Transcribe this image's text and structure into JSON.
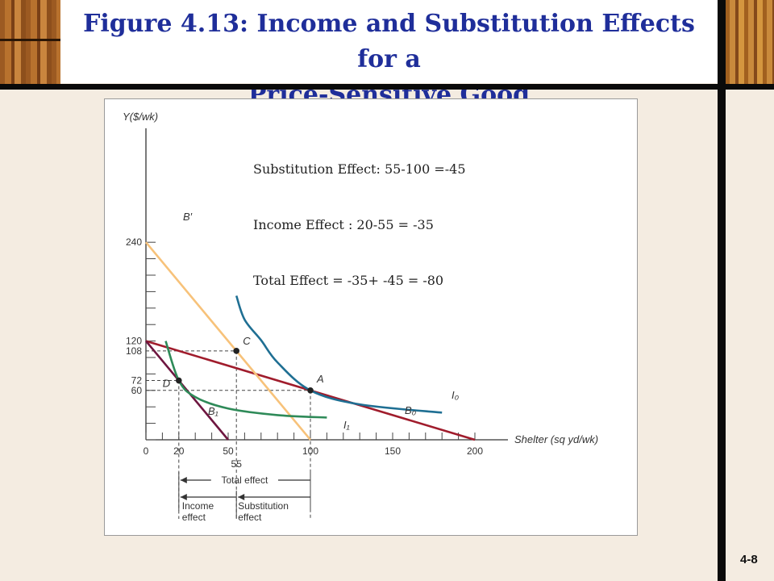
{
  "header": {
    "title_line1": "Figure 4.13: Income and Substitution Effects for a",
    "title_line2": "Price-Sensitive Good"
  },
  "slide_number": "4-8",
  "annotations": [
    "Substitution Effect: 55-100 =-45",
    "Income Effect : 20-55 = -35",
    "Total Effect = -35+ -45 = -80"
  ],
  "chart_data": {
    "type": "line",
    "xlabel": "Shelter (sq yd/wk)",
    "ylabel": "Y($/wk)",
    "xlim": [
      0,
      220
    ],
    "ylim": [
      0,
      250
    ],
    "x_ticks": [
      "0",
      "20",
      "50",
      "100",
      "150",
      "200"
    ],
    "x_extra_tick": "55",
    "y_ticks": [
      "60",
      "72",
      "108",
      "120",
      "240"
    ],
    "series": [
      {
        "name": "B₀",
        "values": [
          [
            0,
            120
          ],
          [
            200,
            0
          ]
        ],
        "color": "#a01c2c"
      },
      {
        "name": "B₁",
        "values": [
          [
            0,
            120
          ],
          [
            50,
            0
          ]
        ],
        "color": "#6e1640"
      },
      {
        "name": "B′",
        "values": [
          [
            0,
            240
          ],
          [
            100,
            0
          ]
        ],
        "color": "#f7c27a"
      },
      {
        "name": "I₀",
        "values": [
          [
            55,
            175
          ],
          [
            60,
            146
          ],
          [
            70,
            121
          ],
          [
            80,
            94
          ],
          [
            100,
            60
          ],
          [
            130,
            43
          ],
          [
            180,
            33
          ]
        ],
        "color": "#1f6f93"
      },
      {
        "name": "I₁",
        "values": [
          [
            12,
            120
          ],
          [
            20,
            72
          ],
          [
            30,
            52
          ],
          [
            50,
            38
          ],
          [
            80,
            30
          ],
          [
            110,
            27
          ]
        ],
        "color": "#2e8a58"
      }
    ],
    "points": [
      {
        "label": "A",
        "x": 100,
        "y": 60
      },
      {
        "label": "C",
        "x": 55,
        "y": 108
      },
      {
        "label": "D",
        "x": 20,
        "y": 72
      }
    ],
    "effects": {
      "total_label": "Total effect",
      "income_label_1": "Income",
      "income_label_2": "effect",
      "substitution_label_1": "Substitution",
      "substitution_label_2": "effect"
    }
  }
}
